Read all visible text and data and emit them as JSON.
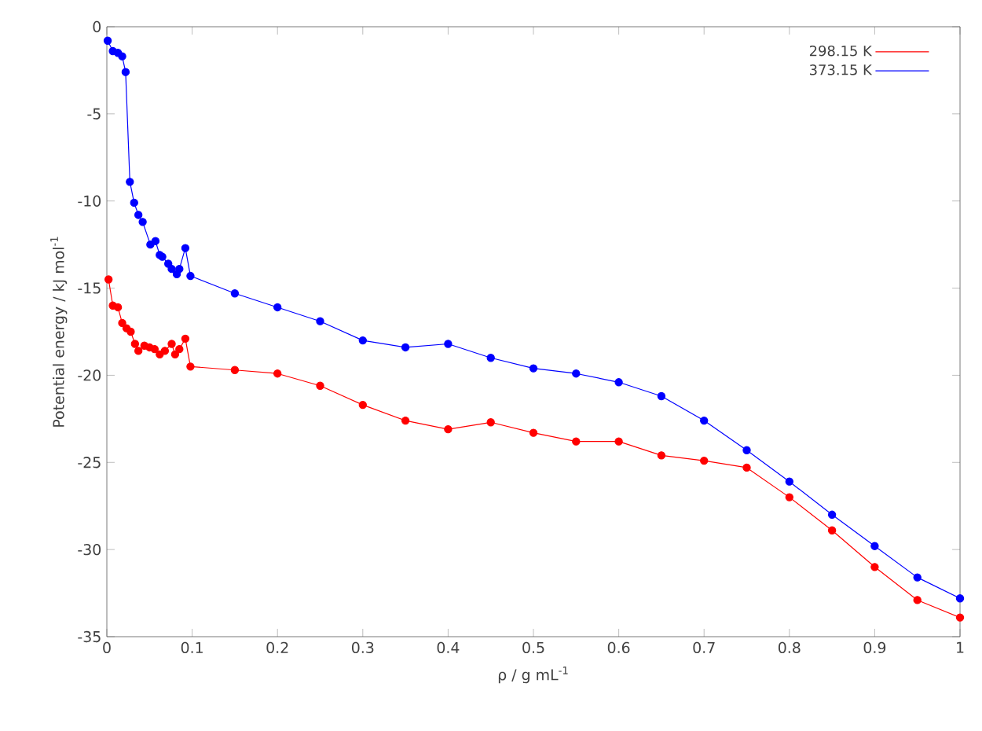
{
  "chart_data": {
    "type": "line",
    "xlabel": "ρ / g mL$^{-1}$",
    "ylabel": "Potential energy / kJ mol$^{-1}$",
    "xlim": [
      0,
      1
    ],
    "ylim": [
      -35,
      0
    ],
    "xticks": [
      0,
      0.1,
      0.2,
      0.3,
      0.4,
      0.5,
      0.6,
      0.7,
      0.8,
      0.9,
      1
    ],
    "yticks": [
      0,
      -5,
      -10,
      -15,
      -20,
      -25,
      -30,
      -35
    ],
    "grid": false,
    "legend": "top right",
    "marker": "circle",
    "line_style": "solid",
    "series": [
      {
        "name": "298.15 K",
        "color": "#ff0000",
        "x": [
          0.002,
          0.007,
          0.013,
          0.018,
          0.023,
          0.028,
          0.033,
          0.037,
          0.044,
          0.05,
          0.056,
          0.062,
          0.068,
          0.076,
          0.08,
          0.085,
          0.092,
          0.098,
          0.15,
          0.2,
          0.25,
          0.3,
          0.35,
          0.4,
          0.45,
          0.5,
          0.55,
          0.6,
          0.65,
          0.7,
          0.75,
          0.8,
          0.85,
          0.9,
          0.95,
          1.0
        ],
        "values": [
          -14.5,
          -16.0,
          -16.1,
          -17.0,
          -17.3,
          -17.5,
          -18.2,
          -18.6,
          -18.3,
          -18.4,
          -18.5,
          -18.8,
          -18.6,
          -18.2,
          -18.8,
          -18.5,
          -17.9,
          -19.5,
          -19.7,
          -19.9,
          -20.6,
          -21.7,
          -22.6,
          -23.1,
          -22.7,
          -23.3,
          -23.8,
          -23.8,
          -24.6,
          -24.9,
          -25.3,
          -27.0,
          -28.9,
          -31.0,
          -32.9,
          -33.9
        ]
      },
      {
        "name": "373.15 K",
        "color": "#0000ff",
        "x": [
          0.001,
          0.007,
          0.013,
          0.018,
          0.022,
          0.027,
          0.032,
          0.037,
          0.042,
          0.051,
          0.057,
          0.062,
          0.065,
          0.072,
          0.076,
          0.082,
          0.085,
          0.092,
          0.098,
          0.15,
          0.2,
          0.25,
          0.3,
          0.35,
          0.4,
          0.45,
          0.5,
          0.55,
          0.6,
          0.65,
          0.7,
          0.75,
          0.8,
          0.85,
          0.9,
          0.95,
          1.0
        ],
        "values": [
          -0.8,
          -1.4,
          -1.5,
          -1.7,
          -2.6,
          -8.9,
          -10.1,
          -10.8,
          -11.2,
          -12.5,
          -12.3,
          -13.1,
          -13.2,
          -13.6,
          -13.9,
          -14.2,
          -13.9,
          -12.7,
          -14.3,
          -15.3,
          -16.1,
          -16.9,
          -18.0,
          -18.4,
          -18.2,
          -19.0,
          -19.6,
          -19.9,
          -20.4,
          -21.2,
          -22.6,
          -24.3,
          -26.1,
          -28.0,
          -29.8,
          -31.6,
          -32.8
        ]
      }
    ]
  }
}
